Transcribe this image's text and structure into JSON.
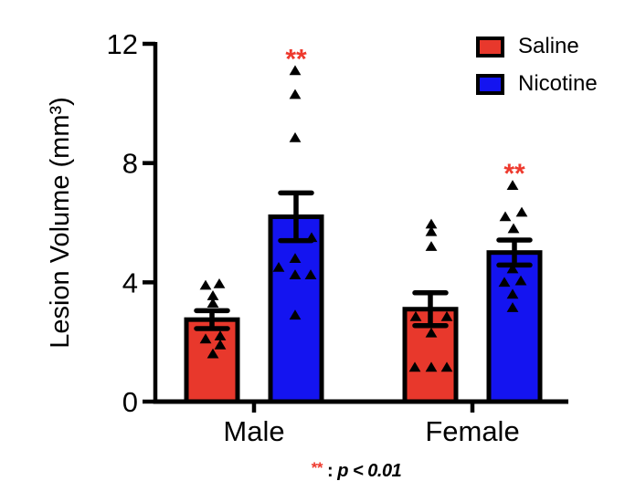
{
  "chart_data": {
    "type": "bar",
    "title": "",
    "ylabel": "Lesion Volume (mm³)",
    "xlabel": "",
    "ylim": [
      0,
      12
    ],
    "yticks": [
      0,
      4,
      8,
      12
    ],
    "categories": [
      "Male",
      "Female"
    ],
    "grid": false,
    "legend_position": "top-right",
    "error_bar_type": "SEM",
    "marker": "filled-triangle-up",
    "series": [
      {
        "name": "Saline",
        "color": "#E8382C",
        "means": [
          2.75,
          3.1
        ],
        "sem": [
          0.3,
          0.55
        ],
        "points": [
          [
            {
              "v": 3.9,
              "dx": -7
            },
            {
              "v": 3.95,
              "dx": 8
            },
            {
              "v": 3.55,
              "dx": 1
            },
            {
              "v": 3.3,
              "dx": 1
            },
            {
              "v": 2.2,
              "dx": 9
            },
            {
              "v": 2.1,
              "dx": -7
            },
            {
              "v": 1.9,
              "dx": 9
            },
            {
              "v": 1.6,
              "dx": 1
            }
          ],
          [
            {
              "v": 5.95,
              "dx": 1
            },
            {
              "v": 5.7,
              "dx": 1
            },
            {
              "v": 5.2,
              "dx": 1
            },
            {
              "v": 2.85,
              "dx": -16
            },
            {
              "v": 2.85,
              "dx": 18
            },
            {
              "v": 2.3,
              "dx": 1
            },
            {
              "v": 1.15,
              "dx": -17
            },
            {
              "v": 1.15,
              "dx": 1
            },
            {
              "v": 1.15,
              "dx": 18
            }
          ]
        ]
      },
      {
        "name": "Nicotine",
        "color": "#1414F0",
        "means": [
          6.2,
          5.0
        ],
        "sem": [
          0.8,
          0.42
        ],
        "points": [
          [
            {
              "v": 11.1,
              "dx": -1
            },
            {
              "v": 10.3,
              "dx": -1
            },
            {
              "v": 8.85,
              "dx": -1
            },
            {
              "v": 5.5,
              "dx": 17
            },
            {
              "v": 4.8,
              "dx": -1
            },
            {
              "v": 4.5,
              "dx": -19
            },
            {
              "v": 4.25,
              "dx": -1
            },
            {
              "v": 4.25,
              "dx": 16
            },
            {
              "v": 2.9,
              "dx": -1
            }
          ],
          [
            {
              "v": 7.25,
              "dx": -2
            },
            {
              "v": 6.35,
              "dx": 8
            },
            {
              "v": 6.2,
              "dx": -10
            },
            {
              "v": 5.8,
              "dx": -1
            },
            {
              "v": 4.45,
              "dx": -2
            },
            {
              "v": 4.05,
              "dx": 7
            },
            {
              "v": 4.0,
              "dx": -11
            },
            {
              "v": 3.6,
              "dx": -2
            },
            {
              "v": 3.15,
              "dx": -2
            }
          ]
        ]
      }
    ],
    "significance": [
      {
        "category": "Male",
        "series": "Nicotine",
        "label": "**"
      },
      {
        "category": "Female",
        "series": "Nicotine",
        "label": "**"
      }
    ],
    "caption": {
      "symbol": "**",
      "separator": " : ",
      "text": "p < 0.01"
    },
    "colors": {
      "bar_saline": "#E8382C",
      "bar_nicotine": "#1414F0",
      "star_red": "#EE3A2E",
      "axis": "#000000",
      "background": "#FFFFFF"
    }
  }
}
